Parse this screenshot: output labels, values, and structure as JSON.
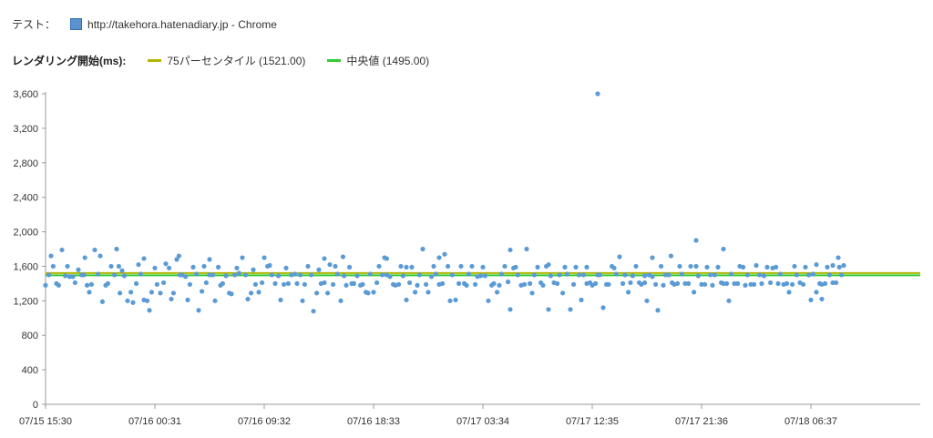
{
  "header": {
    "test_label": "テスト：",
    "test_value": "http://takehora.hatenadiary.jp - Chrome",
    "series_color": "#5b9bd5"
  },
  "legend": {
    "title": "レンダリング開始(ms):",
    "items": [
      {
        "label": "75パーセンタイル (1521.00)",
        "color": "#b0b400"
      },
      {
        "label": "中央値 (1495.00)",
        "color": "#33cc33"
      }
    ]
  },
  "chart_data": {
    "type": "scatter",
    "title": "",
    "xlabel": "",
    "ylabel": "",
    "ylim": [
      0,
      3600
    ],
    "yticks": [
      0,
      400,
      800,
      1200,
      1600,
      2000,
      2400,
      2800,
      3200,
      3600
    ],
    "ytick_labels": [
      "0",
      "400",
      "800",
      "1,200",
      "1,600",
      "2,000",
      "2,400",
      "2,800",
      "3,200",
      "3,600"
    ],
    "xticks": [
      "07/15 15:30",
      "07/16 00:31",
      "07/16 09:32",
      "07/16 18:33",
      "07/17 03:34",
      "07/17 12:35",
      "07/17 21:36",
      "07/18 06:37"
    ],
    "x_tick_interval_hours": 9.0167,
    "x_range_intervals": [
      0,
      7.3
    ],
    "reference_lines": [
      {
        "name": "75パーセンタイル",
        "value": 1521,
        "color": "#b0b400"
      },
      {
        "name": "中央値",
        "value": 1495,
        "color": "#33cc33"
      }
    ],
    "series": [
      {
        "name": "http://takehora.hatenadiary.jp - Chrome",
        "color": "#5b9bd5",
        "x_unit": "tick intervals from 07/15 15:30",
        "x": [
          0.0,
          0.05,
          0.1,
          0.15,
          0.2,
          0.25,
          0.3,
          0.35,
          0.4,
          0.45,
          0.5,
          0.55,
          0.6,
          0.65,
          0.7,
          0.75,
          0.8,
          0.85,
          0.9,
          0.95,
          1.0,
          1.05,
          1.1,
          1.15,
          1.2,
          1.25,
          1.3,
          1.35,
          1.4,
          1.45,
          1.5,
          1.55,
          1.6,
          1.65,
          1.7,
          1.75,
          1.8,
          1.85,
          1.9,
          1.95,
          2.0,
          2.05,
          2.1,
          2.15,
          2.2,
          2.25,
          2.3,
          2.35,
          2.4,
          2.45,
          2.5,
          2.55,
          2.6,
          2.65,
          2.7,
          2.75,
          2.8,
          2.85,
          2.9,
          2.95,
          3.0,
          3.05,
          3.1,
          3.15,
          3.2,
          3.25,
          3.3,
          3.35,
          3.4,
          3.45,
          3.5,
          3.55,
          3.6,
          3.65,
          3.7,
          3.75,
          3.8,
          3.85,
          3.9,
          3.95,
          4.0,
          4.05,
          4.1,
          4.15,
          4.2,
          4.25,
          4.3,
          4.35,
          4.4,
          4.45,
          4.5,
          4.55,
          4.6,
          4.65,
          4.7,
          4.75,
          4.8,
          4.85,
          4.9,
          4.95,
          5.0,
          5.05,
          5.1,
          5.15,
          5.2,
          5.25,
          5.3,
          5.35,
          5.4,
          5.45,
          5.5,
          5.55,
          5.6,
          5.65,
          5.7,
          5.75,
          5.8,
          5.85,
          5.9,
          5.95,
          6.0,
          6.05,
          6.1,
          6.15,
          6.2,
          6.25,
          6.3,
          6.35,
          6.4,
          6.45,
          6.5,
          6.55,
          6.6,
          6.65,
          6.7,
          6.75,
          6.8,
          6.85,
          6.9,
          6.95,
          7.0,
          7.05,
          7.1,
          7.15,
          7.2,
          7.25,
          7.3,
          0.03,
          0.12,
          0.18,
          0.27,
          0.33,
          0.42,
          0.48,
          0.57,
          0.63,
          0.72,
          0.78,
          0.87,
          0.93,
          1.02,
          1.08,
          1.17,
          1.23,
          1.32,
          1.38,
          1.47,
          1.53,
          1.62,
          1.68,
          1.77,
          1.83,
          1.92,
          1.98,
          2.07,
          2.13,
          2.22,
          2.28,
          2.37,
          2.43,
          2.52,
          2.58,
          2.67,
          2.73,
          2.82,
          2.88,
          2.97,
          3.03,
          3.12,
          3.18,
          3.27,
          3.33,
          3.42,
          3.48,
          3.57,
          3.63,
          3.72,
          3.78,
          3.87,
          3.93,
          4.02,
          4.08,
          4.17,
          4.23,
          4.32,
          4.38,
          4.47,
          4.53,
          4.62,
          4.68,
          4.77,
          4.83,
          4.92,
          4.98,
          5.07,
          5.13,
          5.22,
          5.28,
          5.37,
          5.43,
          5.52,
          5.58,
          5.67,
          5.73,
          5.82,
          5.88,
          5.97,
          6.03,
          6.12,
          6.18,
          6.27,
          6.33,
          6.42,
          6.48,
          6.57,
          6.63,
          6.72,
          6.78,
          6.87,
          6.93,
          7.02,
          7.08,
          7.17,
          7.23,
          7.28,
          0.07,
          0.22,
          0.38,
          0.52,
          0.68,
          0.83,
          0.97,
          1.13,
          1.28,
          1.43,
          1.58,
          1.73,
          1.88,
          2.03,
          2.18,
          2.33,
          2.48,
          2.63,
          2.78,
          2.93,
          3.08,
          3.23,
          3.38,
          3.53,
          3.68,
          3.83,
          3.98,
          4.13,
          4.28,
          4.43,
          4.58,
          4.73,
          4.88,
          5.03,
          5.18,
          5.33,
          5.48,
          5.63,
          5.78,
          5.93,
          6.08,
          6.23,
          6.38,
          6.53,
          6.68,
          6.83,
          6.98,
          7.13,
          7.26,
          0.36,
          0.67,
          0.9,
          1.22,
          1.5,
          2.55,
          2.72,
          3.12,
          3.3,
          3.6,
          4.25,
          4.6,
          4.95,
          5.05,
          5.48,
          5.55,
          5.72,
          5.95,
          6.2,
          7.05,
          7.1,
          7.2
        ],
        "y": [
          1380,
          1720,
          1400,
          1790,
          1600,
          1480,
          1560,
          1500,
          1300,
          1790,
          1720,
          1380,
          1600,
          1800,
          1550,
          1200,
          1180,
          1620,
          1210,
          1090,
          1580,
          1290,
          1630,
          1220,
          1680,
          1500,
          1210,
          1590,
          1090,
          1600,
          1500,
          1200,
          1380,
          1490,
          1280,
          1580,
          1700,
          1220,
          1560,
          1300,
          1700,
          1610,
          1400,
          1210,
          1580,
          1500,
          1400,
          1200,
          1600,
          1080,
          1560,
          1410,
          1620,
          1600,
          1200,
          1380,
          1400,
          1490,
          1390,
          1290,
          1300,
          1600,
          1700,
          1480,
          1380,
          1600,
          1210,
          1590,
          1380,
          1800,
          1300,
          1600,
          1390,
          1740,
          1200,
          1210,
          1600,
          1380,
          1600,
          1480,
          1590,
          1200,
          1400,
          1380,
          1600,
          1100,
          1590,
          1380,
          1800,
          1290,
          1590,
          1380,
          1100,
          1410,
          1500,
          1590,
          1100,
          1590,
          1210,
          1400,
          1380,
          1500,
          1120,
          1390,
          1580,
          1710,
          1500,
          1410,
          1600,
          1390,
          1200,
          1480,
          1090,
          1380,
          1500,
          1390,
          1600,
          1400,
          1600,
          1900,
          1390,
          1590,
          1380,
          1590,
          1400,
          1200,
          1400,
          1600,
          1380,
          1390,
          1610,
          1400,
          1590,
          1580,
          1400,
          1390,
          1300,
          1600,
          1410,
          1590,
          1210,
          1620,
          1390,
          1590,
          1610,
          1700,
          1610,
          1500,
          1380,
          1490,
          1410,
          1500,
          1390,
          1510,
          1400,
          1500,
          1490,
          1300,
          1510,
          1200,
          1390,
          1410,
          1290,
          1500,
          1390,
          1510,
          1410,
          1500,
          1400,
          1290,
          1520,
          1500,
          1390,
          1410,
          1500,
          1490,
          1400,
          1510,
          1390,
          1500,
          1400,
          1290,
          1510,
          1490,
          1400,
          1380,
          1510,
          1410,
          1500,
          1390,
          1490,
          1410,
          1500,
          1390,
          1510,
          1400,
          1500,
          1400,
          1510,
          1390,
          1490,
          1380,
          1510,
          1420,
          1500,
          1390,
          1500,
          1410,
          1490,
          1400,
          1510,
          1390,
          1500,
          1410,
          1500,
          1390,
          1510,
          1400,
          1490,
          1410,
          1500,
          1390,
          1500,
          1410,
          1510,
          1400,
          1490,
          1390,
          1500,
          1410,
          1510,
          1400,
          1500,
          1390,
          1490,
          1410,
          1510,
          1400,
          1500,
          1390,
          1510,
          1400,
          1500,
          1410,
          1500,
          1600,
          1480,
          1380,
          1190,
          1290,
          1400,
          1300,
          1580,
          1480,
          1310,
          1590,
          1500,
          1290,
          1600,
          1390,
          1500,
          1290,
          1390,
          1590,
          1300,
          1500,
          1390,
          1300,
          1480,
          1600,
          1400,
          1490,
          1300,
          1580,
          1400,
          1600,
          1290,
          1500,
          1400,
          1600,
          1300,
          1490,
          1600,
          1400,
          1300,
          1500,
          1400,
          1590,
          1500,
          1590,
          1390,
          1500,
          1400,
          1590,
          1700,
          1600,
          1690,
          1720,
          1680,
          1690,
          1710,
          1690,
          1590,
          1700,
          1790,
          1620,
          1590,
          3600,
          1410,
          1700,
          1720,
          1600,
          1800,
          1300,
          1220,
          1410
        ]
      }
    ]
  }
}
